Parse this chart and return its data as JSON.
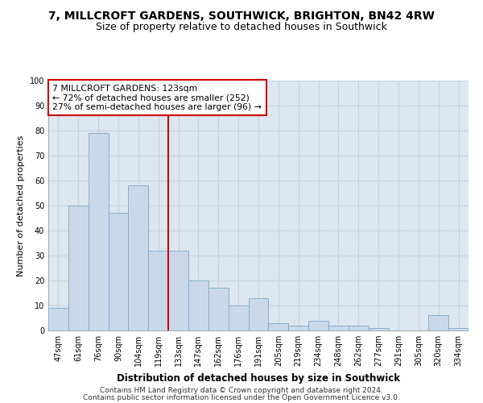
{
  "title1": "7, MILLCROFT GARDENS, SOUTHWICK, BRIGHTON, BN42 4RW",
  "title2": "Size of property relative to detached houses in Southwick",
  "xlabel": "Distribution of detached houses by size in Southwick",
  "ylabel": "Number of detached properties",
  "categories": [
    "47sqm",
    "61sqm",
    "76sqm",
    "90sqm",
    "104sqm",
    "119sqm",
    "133sqm",
    "147sqm",
    "162sqm",
    "176sqm",
    "191sqm",
    "205sqm",
    "219sqm",
    "234sqm",
    "248sqm",
    "262sqm",
    "277sqm",
    "291sqm",
    "305sqm",
    "320sqm",
    "334sqm"
  ],
  "values": [
    9,
    50,
    79,
    47,
    58,
    32,
    32,
    20,
    17,
    10,
    13,
    3,
    2,
    4,
    2,
    2,
    1,
    0,
    0,
    6,
    1
  ],
  "bar_color": "#c9d9ea",
  "bar_edge_color": "#7aaac8",
  "vline_x": 6.0,
  "vline_color": "#cc0000",
  "annotation_text": "7 MILLCROFT GARDENS: 123sqm\n← 72% of detached houses are smaller (252)\n27% of semi-detached houses are larger (96) →",
  "annotation_box_color": "#ffffff",
  "annotation_box_edge": "#cc0000",
  "ylim": [
    0,
    100
  ],
  "yticks": [
    0,
    10,
    20,
    30,
    40,
    50,
    60,
    70,
    80,
    90,
    100
  ],
  "grid_color": "#c8d4e0",
  "bg_color": "#dce7f0",
  "footer1": "Contains HM Land Registry data © Crown copyright and database right 2024.",
  "footer2": "Contains public sector information licensed under the Open Government Licence v3.0.",
  "title1_fontsize": 10,
  "title2_fontsize": 9,
  "ann_fontsize": 7.8,
  "tick_fontsize": 7,
  "xlabel_fontsize": 8.5,
  "ylabel_fontsize": 8,
  "footer_fontsize": 6.5
}
